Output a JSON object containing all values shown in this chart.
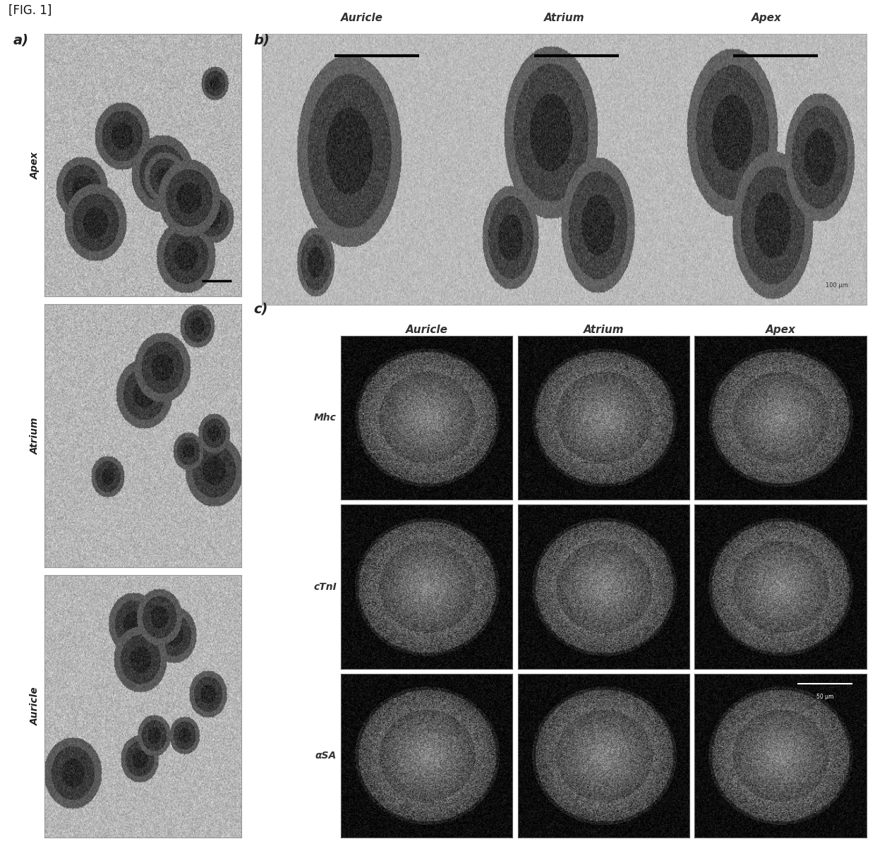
{
  "fig_label": "[FIG. 1]",
  "panel_a_label": "a)",
  "panel_b_label": "b)",
  "panel_c_label": "c)",
  "panel_a_row_labels": [
    "Apex",
    "Atrium",
    "Auricle"
  ],
  "panel_b_col_labels": [
    "Auricle",
    "Atrium",
    "Apex"
  ],
  "panel_c_col_labels": [
    "Auricle",
    "Atrium",
    "Apex"
  ],
  "panel_c_row_labels": [
    "Mhc",
    "cTnI",
    "αSA"
  ],
  "bg_color": "#ffffff",
  "label_fontsize": 14,
  "sublabel_fontsize": 11,
  "row_label_fontsize": 10
}
